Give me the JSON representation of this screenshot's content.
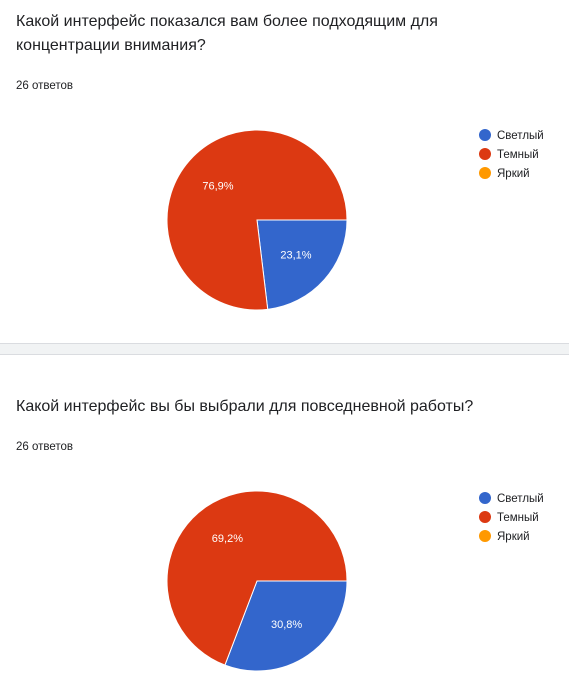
{
  "chart_data": [
    {
      "type": "pie",
      "title": "Какой интерфейс показался вам более подходящим для концентрации внимания?",
      "responses": "26 ответов",
      "categories": [
        "Светлый",
        "Темный",
        "Яркий"
      ],
      "values": [
        23.1,
        76.9,
        0
      ],
      "labels": [
        "23,1%",
        "76,9%",
        ""
      ],
      "colors": [
        "#3366cc",
        "#dc3912",
        "#ff9900"
      ],
      "legend_position": "right"
    },
    {
      "type": "pie",
      "title": "Какой интерфейс вы бы выбрали для повседневной работы?",
      "responses": "26 ответов",
      "categories": [
        "Светлый",
        "Темный",
        "Яркий"
      ],
      "values": [
        30.8,
        69.2,
        0
      ],
      "labels": [
        "30,8%",
        "69,2%",
        ""
      ],
      "colors": [
        "#3366cc",
        "#dc3912",
        "#ff9900"
      ],
      "legend_position": "right"
    }
  ]
}
